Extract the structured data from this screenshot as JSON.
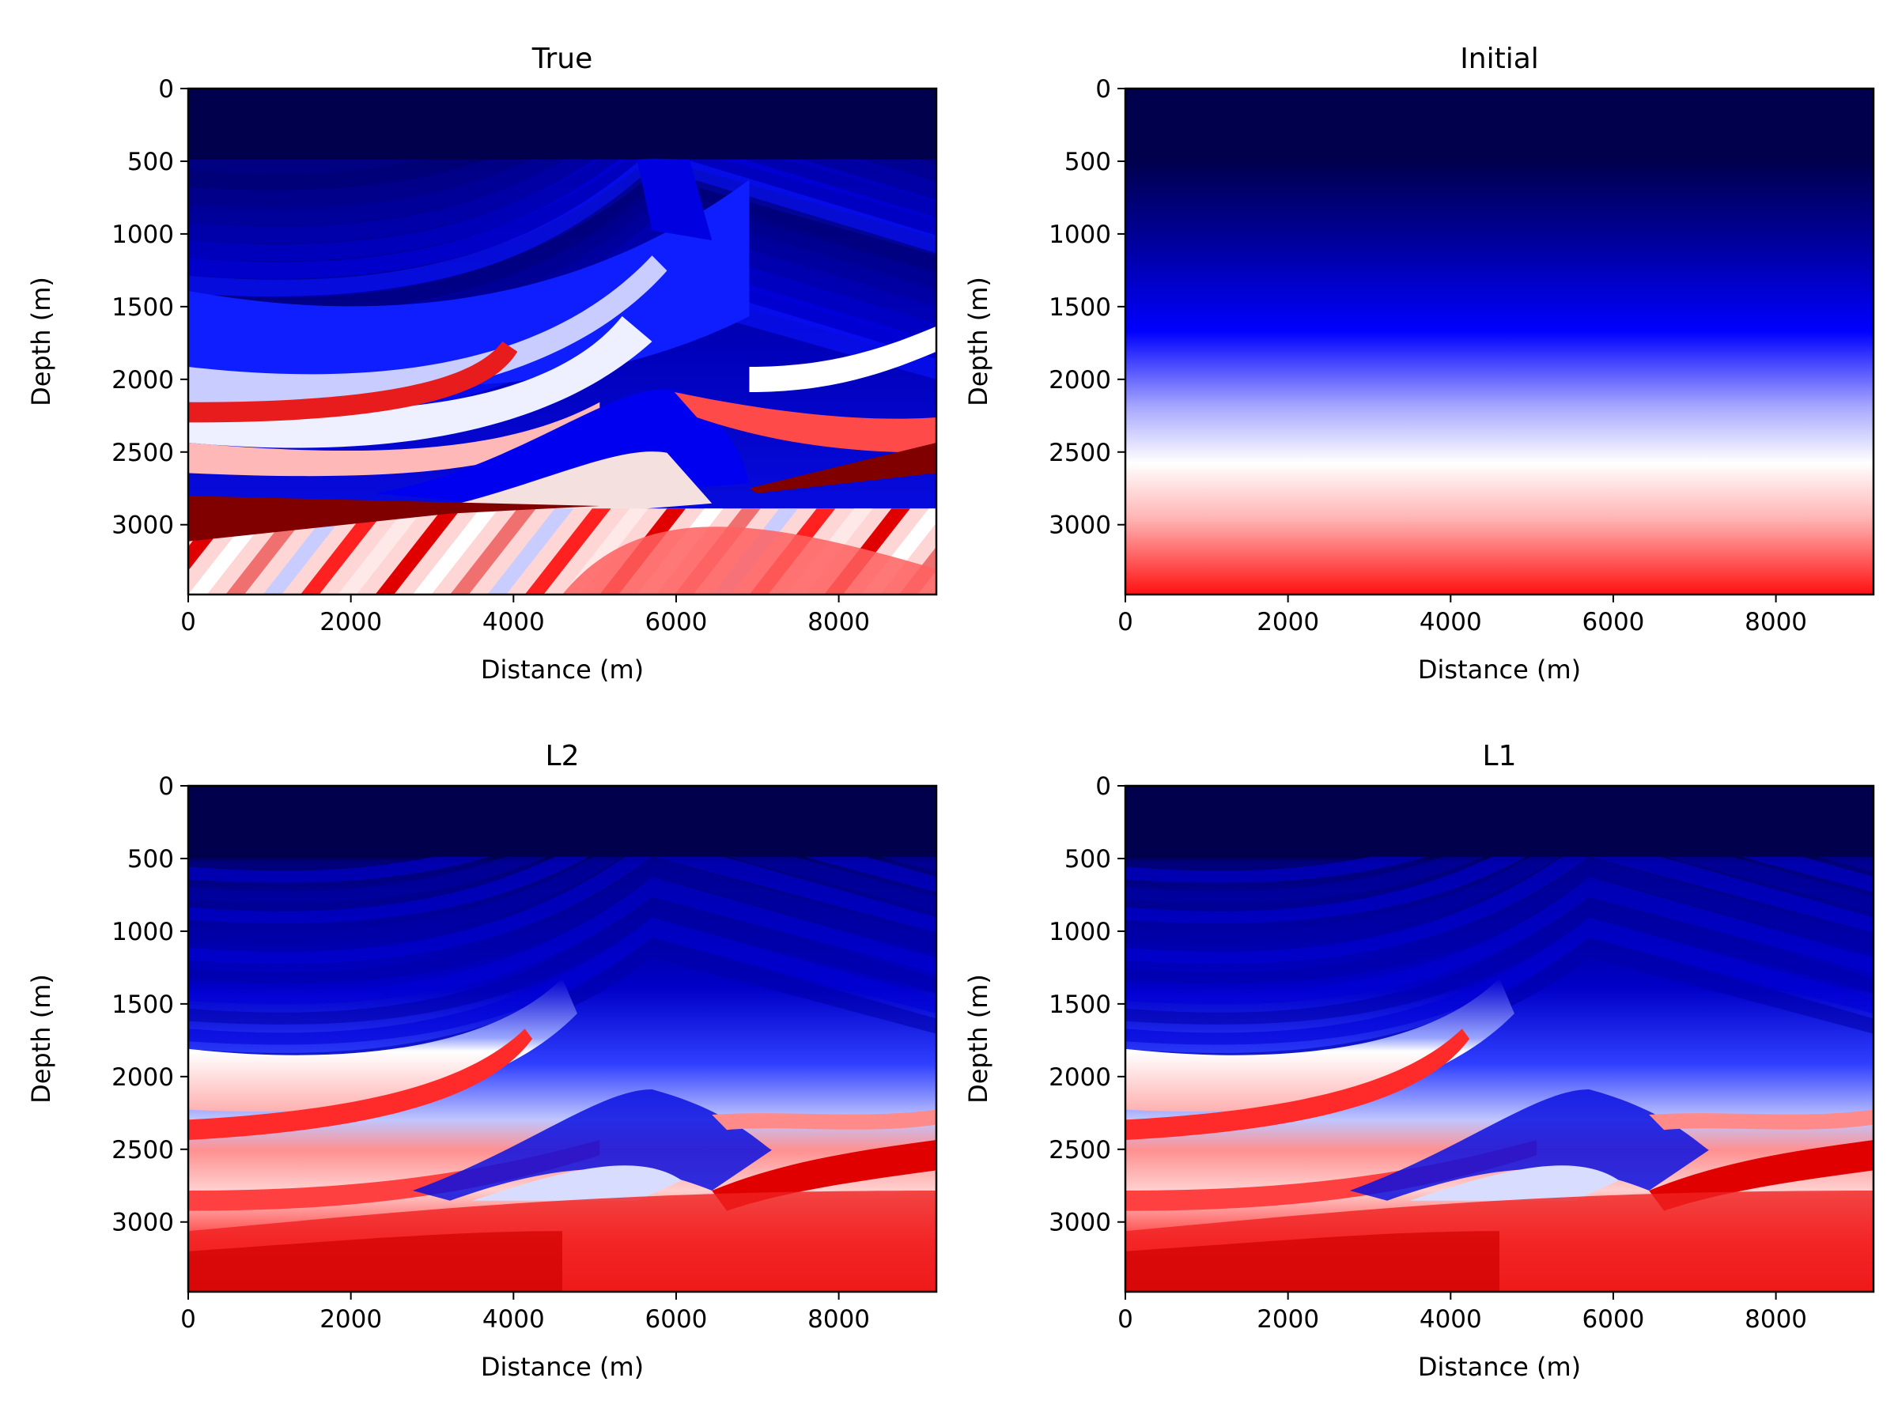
{
  "chart_data": [
    {
      "type": "heatmap",
      "id": "true",
      "title": "True",
      "xlabel": "Distance (m)",
      "ylabel": "Depth (m)",
      "xlim": [
        0,
        9200
      ],
      "ylim": [
        3480,
        0
      ],
      "xticks": [
        0,
        2000,
        4000,
        6000,
        8000
      ],
      "yticks": [
        0,
        500,
        1000,
        1500,
        2000,
        2500,
        3000
      ],
      "colormap": "seismic",
      "grid": false
    },
    {
      "type": "heatmap",
      "id": "initial",
      "title": "Initial",
      "xlabel": "Distance (m)",
      "ylabel": "Depth (m)",
      "xlim": [
        0,
        9200
      ],
      "ylim": [
        3480,
        0
      ],
      "xticks": [
        0,
        2000,
        4000,
        6000,
        8000
      ],
      "yticks": [
        0,
        500,
        1000,
        1500,
        2000,
        2500,
        3000
      ],
      "colormap": "seismic",
      "grid": false
    },
    {
      "type": "heatmap",
      "id": "l2",
      "title": "L2",
      "xlabel": "Distance (m)",
      "ylabel": "Depth (m)",
      "xlim": [
        0,
        9200
      ],
      "ylim": [
        3480,
        0
      ],
      "xticks": [
        0,
        2000,
        4000,
        6000,
        8000
      ],
      "yticks": [
        0,
        500,
        1000,
        1500,
        2000,
        2500,
        3000
      ],
      "colormap": "seismic",
      "grid": false
    },
    {
      "type": "heatmap",
      "id": "l1",
      "title": "L1",
      "xlabel": "Distance (m)",
      "ylabel": "Depth (m)",
      "xlim": [
        0,
        9200
      ],
      "ylim": [
        3480,
        0
      ],
      "xticks": [
        0,
        2000,
        4000,
        6000,
        8000
      ],
      "yticks": [
        0,
        500,
        1000,
        1500,
        2000,
        2500,
        3000
      ],
      "colormap": "seismic",
      "grid": false
    }
  ],
  "colors": {
    "water": "#00004c",
    "dark_blue": "#00009a",
    "blue": "#0000ff",
    "white": "#ffffff",
    "red": "#ff0000",
    "dark_red": "#800000"
  }
}
